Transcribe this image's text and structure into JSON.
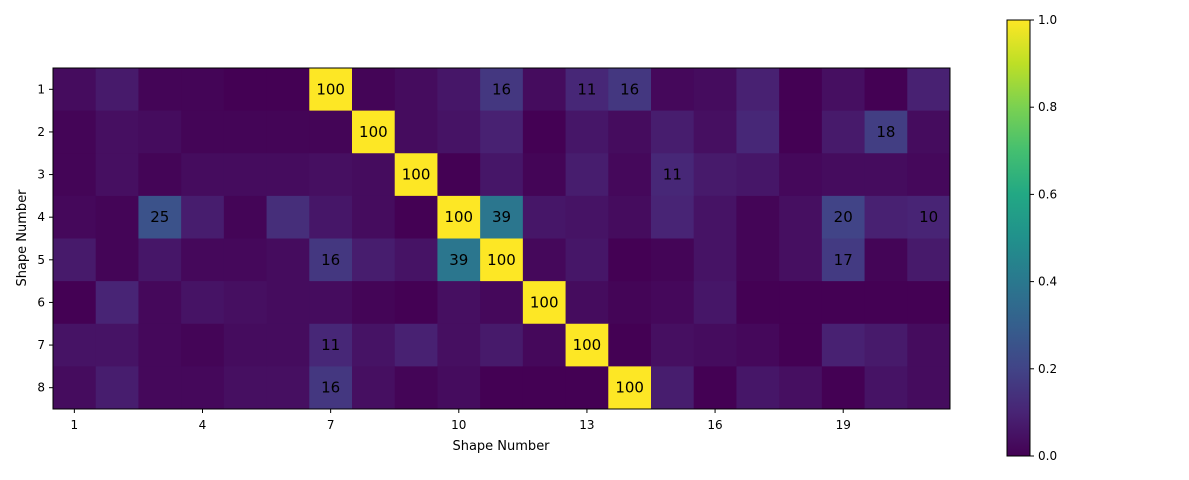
{
  "chart_data": {
    "type": "heatmap",
    "title": "",
    "xlabel": "Shape Number",
    "ylabel": "Shape Number",
    "x_ticks": [
      "1",
      "4",
      "7",
      "10",
      "13",
      "16",
      "19"
    ],
    "x_tick_columns": [
      1,
      4,
      7,
      10,
      13,
      16,
      19
    ],
    "y_ticks": [
      "1",
      "2",
      "3",
      "4",
      "5",
      "6",
      "7",
      "8"
    ],
    "n_cols": 21,
    "n_rows": 8,
    "colormap": "viridis",
    "colorbar_ticks": [
      "0.0",
      "0.2",
      "0.4",
      "0.6",
      "0.8",
      "1.0"
    ],
    "colorbar_range": [
      0,
      1
    ],
    "values": [
      [
        0.03,
        0.07,
        0.01,
        0.01,
        0.0,
        0.0,
        1.0,
        0.01,
        0.03,
        0.06,
        0.16,
        0.03,
        0.11,
        0.16,
        0.02,
        0.03,
        0.09,
        0.0,
        0.04,
        0.0,
        0.09
      ],
      [
        0.01,
        0.04,
        0.03,
        0.01,
        0.01,
        0.01,
        0.01,
        1.0,
        0.03,
        0.05,
        0.09,
        0.0,
        0.06,
        0.03,
        0.08,
        0.04,
        0.11,
        0.0,
        0.07,
        0.18,
        0.03
      ],
      [
        0.01,
        0.04,
        0.01,
        0.03,
        0.03,
        0.03,
        0.04,
        0.03,
        1.0,
        0.0,
        0.06,
        0.01,
        0.08,
        0.02,
        0.11,
        0.07,
        0.06,
        0.02,
        0.03,
        0.03,
        0.02
      ],
      [
        0.02,
        0.01,
        0.25,
        0.08,
        0.01,
        0.13,
        0.06,
        0.03,
        0.0,
        1.0,
        0.39,
        0.06,
        0.05,
        0.03,
        0.1,
        0.05,
        0.01,
        0.04,
        0.2,
        0.09,
        0.1
      ],
      [
        0.07,
        0.01,
        0.06,
        0.02,
        0.02,
        0.03,
        0.16,
        0.08,
        0.05,
        0.39,
        1.0,
        0.02,
        0.06,
        0.0,
        0.01,
        0.05,
        0.01,
        0.04,
        0.17,
        0.01,
        0.07
      ],
      [
        0.0,
        0.1,
        0.02,
        0.05,
        0.04,
        0.03,
        0.03,
        0.01,
        0.0,
        0.04,
        0.02,
        1.0,
        0.03,
        0.01,
        0.02,
        0.06,
        0.0,
        0.0,
        0.0,
        0.0,
        0.0
      ],
      [
        0.05,
        0.05,
        0.02,
        0.01,
        0.03,
        0.03,
        0.11,
        0.05,
        0.09,
        0.04,
        0.07,
        0.02,
        1.0,
        0.0,
        0.04,
        0.03,
        0.02,
        0.0,
        0.09,
        0.07,
        0.03
      ],
      [
        0.03,
        0.08,
        0.02,
        0.02,
        0.04,
        0.04,
        0.16,
        0.04,
        0.01,
        0.03,
        0.0,
        0.0,
        0.0,
        1.0,
        0.08,
        0.0,
        0.06,
        0.04,
        0.0,
        0.05,
        0.03
      ]
    ],
    "cell_labels": [
      {
        "row": 1,
        "col": 7,
        "text": "100"
      },
      {
        "row": 1,
        "col": 11,
        "text": "16"
      },
      {
        "row": 1,
        "col": 13,
        "text": "11"
      },
      {
        "row": 1,
        "col": 14,
        "text": "16"
      },
      {
        "row": 2,
        "col": 8,
        "text": "100"
      },
      {
        "row": 2,
        "col": 20,
        "text": "18"
      },
      {
        "row": 3,
        "col": 9,
        "text": "100"
      },
      {
        "row": 3,
        "col": 15,
        "text": "11"
      },
      {
        "row": 4,
        "col": 3,
        "text": "25"
      },
      {
        "row": 4,
        "col": 10,
        "text": "100"
      },
      {
        "row": 4,
        "col": 11,
        "text": "39"
      },
      {
        "row": 4,
        "col": 19,
        "text": "20"
      },
      {
        "row": 4,
        "col": 21,
        "text": "10"
      },
      {
        "row": 5,
        "col": 7,
        "text": "16"
      },
      {
        "row": 5,
        "col": 10,
        "text": "39"
      },
      {
        "row": 5,
        "col": 11,
        "text": "100"
      },
      {
        "row": 5,
        "col": 19,
        "text": "17"
      },
      {
        "row": 6,
        "col": 12,
        "text": "100"
      },
      {
        "row": 7,
        "col": 7,
        "text": "11"
      },
      {
        "row": 7,
        "col": 13,
        "text": "100"
      },
      {
        "row": 8,
        "col": 7,
        "text": "16"
      },
      {
        "row": 8,
        "col": 14,
        "text": "100"
      }
    ]
  }
}
